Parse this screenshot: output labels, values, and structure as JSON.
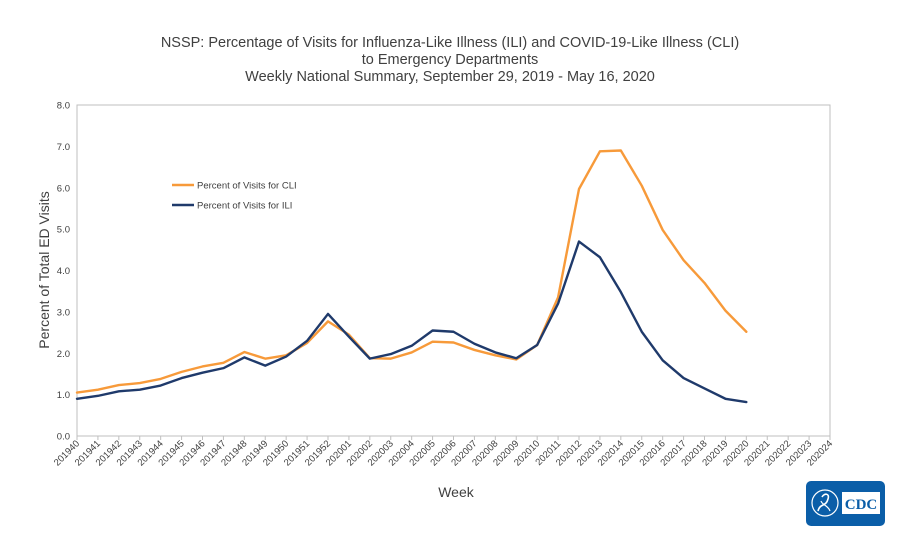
{
  "chart_data": {
    "type": "line",
    "title_lines": [
      "NSSP: Percentage of Visits for Influenza-Like Illness (ILI) and COVID-19-Like Illness (CLI)",
      "to Emergency Departments",
      "Weekly National Summary, September 29, 2019 - May 16, 2020"
    ],
    "xlabel": "Week",
    "ylabel": "Percent of Total ED Visits",
    "ylim": [
      0,
      8
    ],
    "y_ticks": [
      "0.0",
      "1.0",
      "2.0",
      "3.0",
      "4.0",
      "5.0",
      "6.0",
      "7.0",
      "8.0"
    ],
    "grid": false,
    "legend_position": "upper-left",
    "categories": [
      "201940",
      "201941",
      "201942",
      "201943",
      "201944",
      "201945",
      "201946",
      "201947",
      "201948",
      "201949",
      "201950",
      "201951",
      "201952",
      "202001",
      "202002",
      "202003",
      "202004",
      "202005",
      "202006",
      "202007",
      "202008",
      "202009",
      "202010",
      "202011",
      "202012",
      "202013",
      "202014",
      "202015",
      "202016",
      "202017",
      "202018",
      "202019",
      "202020",
      "202021",
      "202022",
      "202023",
      "202024"
    ],
    "series": [
      {
        "name": "Percent of Visits for CLI",
        "color": "#F79A3A",
        "values": [
          1.05,
          1.12,
          1.23,
          1.28,
          1.38,
          1.55,
          1.68,
          1.77,
          2.03,
          1.87,
          1.95,
          2.25,
          2.77,
          2.45,
          1.88,
          1.87,
          2.02,
          2.28,
          2.26,
          2.08,
          1.95,
          1.85,
          2.2,
          3.35,
          5.97,
          6.88,
          6.9,
          6.05,
          4.98,
          4.25,
          3.7,
          3.03,
          2.52,
          null,
          null,
          null,
          null
        ]
      },
      {
        "name": "Percent of Visits for ILI",
        "color": "#1F3A6B",
        "values": [
          0.9,
          0.97,
          1.08,
          1.12,
          1.22,
          1.4,
          1.53,
          1.64,
          1.9,
          1.7,
          1.92,
          2.3,
          2.95,
          2.4,
          1.87,
          1.98,
          2.18,
          2.55,
          2.52,
          2.23,
          2.02,
          1.88,
          2.2,
          3.2,
          4.7,
          4.32,
          3.48,
          2.52,
          1.83,
          1.4,
          1.15,
          0.9,
          0.82,
          null,
          null,
          null,
          null
        ]
      }
    ]
  },
  "logo": {
    "text": "CDC",
    "bg_color": "#0B5EA8"
  }
}
